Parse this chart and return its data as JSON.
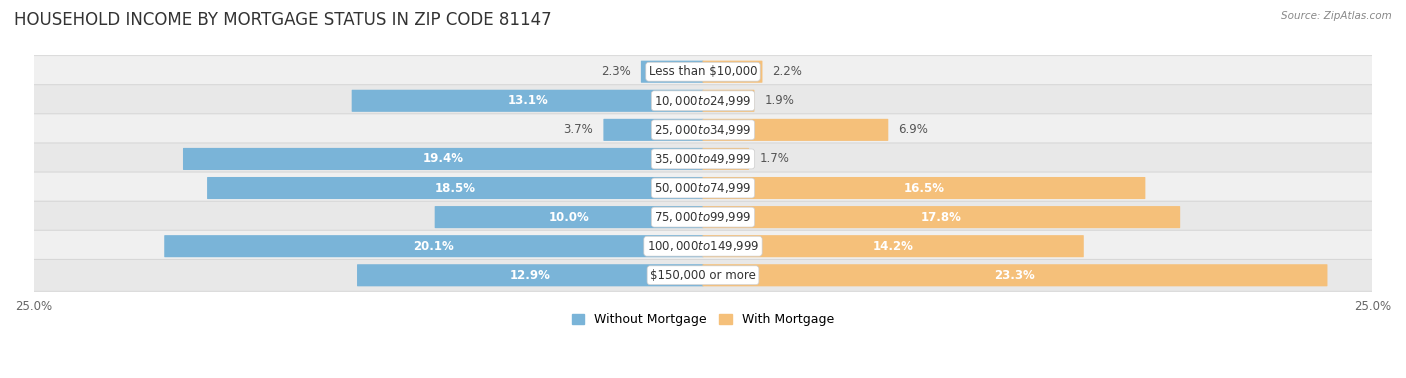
{
  "title": "HOUSEHOLD INCOME BY MORTGAGE STATUS IN ZIP CODE 81147",
  "source": "Source: ZipAtlas.com",
  "categories": [
    "Less than $10,000",
    "$10,000 to $24,999",
    "$25,000 to $34,999",
    "$35,000 to $49,999",
    "$50,000 to $74,999",
    "$75,000 to $99,999",
    "$100,000 to $149,999",
    "$150,000 or more"
  ],
  "without_mortgage": [
    2.3,
    13.1,
    3.7,
    19.4,
    18.5,
    10.0,
    20.1,
    12.9
  ],
  "with_mortgage": [
    2.2,
    1.9,
    6.9,
    1.7,
    16.5,
    17.8,
    14.2,
    23.3
  ],
  "blue_color": "#7ab4d8",
  "orange_color": "#f5c07a",
  "row_bg_even": "#f0f0f0",
  "row_bg_odd": "#e8e8e8",
  "axis_limit": 25.0,
  "bar_height": 0.72,
  "title_fontsize": 12,
  "label_fontsize": 8.5,
  "category_fontsize": 8.5,
  "legend_fontsize": 9,
  "axis_label_fontsize": 8.5
}
